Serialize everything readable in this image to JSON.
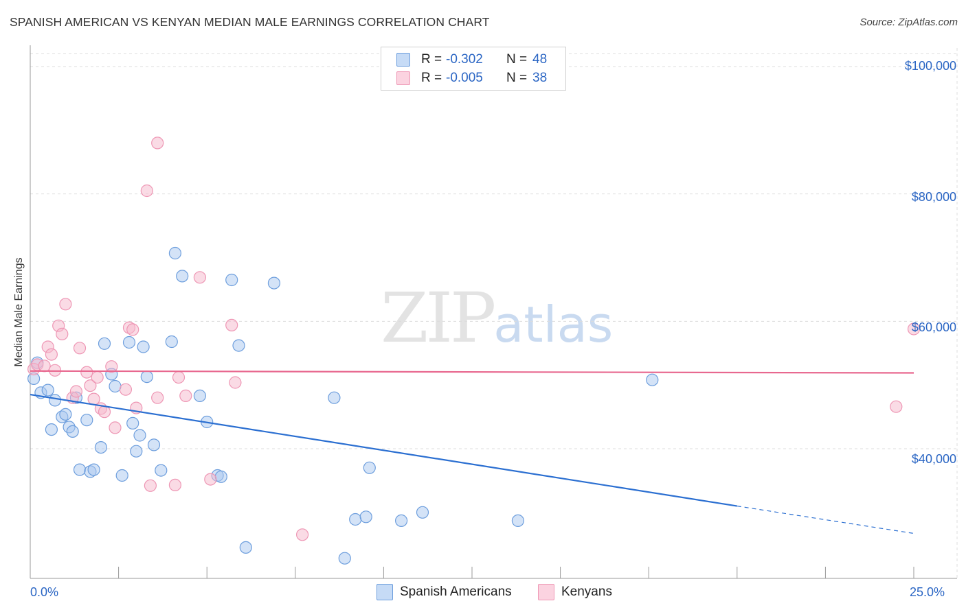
{
  "title": "SPANISH AMERICAN VS KENYAN MEDIAN MALE EARNINGS CORRELATION CHART",
  "source": "Source: ZipAtlas.com",
  "watermark": {
    "part1": "ZIP",
    "part2": "atlas"
  },
  "legend": {
    "rows": [
      {
        "r_label": "R =",
        "r_value": "-0.302",
        "n_label": "N =",
        "n_value": "48",
        "color": "#a9c8f0"
      },
      {
        "r_label": "R =",
        "r_value": "-0.005",
        "n_label": "N =",
        "n_value": "38",
        "color": "#f6b8cc"
      }
    ]
  },
  "bottom_legend": [
    "Spanish Americans",
    "Kenyans"
  ],
  "chart_data": {
    "type": "scatter",
    "title": "SPANISH AMERICAN VS KENYAN MEDIAN MALE EARNINGS CORRELATION CHART",
    "xlabel": "",
    "ylabel": "Median Male Earnings",
    "xlim": [
      0,
      25
    ],
    "ylim": [
      22000,
      103000
    ],
    "x_tick_labels": [
      "0.0%",
      "25.0%"
    ],
    "y_ticks": [
      40000,
      60000,
      80000,
      100000
    ],
    "y_tick_labels": [
      "$40,000",
      "$60,000",
      "$80,000",
      "$100,000"
    ],
    "grid": true,
    "series": [
      {
        "name": "Spanish Americans",
        "color": "#a9c8f0",
        "stroke": "#6d9edd",
        "line_color": "#2b6fd1",
        "trend": {
          "x0": 0,
          "y0": 48500,
          "x1": 20,
          "y1": 31000,
          "dashed_to_x": 25,
          "dashed_to_y": 26700
        },
        "points": [
          [
            0.1,
            51000
          ],
          [
            0.2,
            53500
          ],
          [
            0.3,
            48800
          ],
          [
            0.5,
            49200
          ],
          [
            0.6,
            43000
          ],
          [
            0.7,
            47600
          ],
          [
            0.9,
            45000
          ],
          [
            1.0,
            45400
          ],
          [
            1.1,
            43400
          ],
          [
            1.2,
            42700
          ],
          [
            1.3,
            48000
          ],
          [
            1.4,
            36700
          ],
          [
            1.6,
            44500
          ],
          [
            1.7,
            36400
          ],
          [
            1.8,
            36700
          ],
          [
            2.0,
            40200
          ],
          [
            2.1,
            56500
          ],
          [
            2.3,
            51700
          ],
          [
            2.4,
            49800
          ],
          [
            2.6,
            35800
          ],
          [
            2.8,
            56700
          ],
          [
            2.9,
            44000
          ],
          [
            3.0,
            39600
          ],
          [
            3.1,
            42100
          ],
          [
            3.2,
            56000
          ],
          [
            3.3,
            51300
          ],
          [
            3.5,
            40600
          ],
          [
            3.7,
            36600
          ],
          [
            4.0,
            56800
          ],
          [
            4.1,
            70700
          ],
          [
            4.3,
            67100
          ],
          [
            4.8,
            48300
          ],
          [
            5.0,
            44200
          ],
          [
            5.3,
            35800
          ],
          [
            5.4,
            35600
          ],
          [
            5.7,
            66500
          ],
          [
            5.9,
            56200
          ],
          [
            6.1,
            24500
          ],
          [
            6.9,
            66000
          ],
          [
            8.6,
            48000
          ],
          [
            8.9,
            22800
          ],
          [
            9.2,
            28900
          ],
          [
            9.5,
            29300
          ],
          [
            9.6,
            37000
          ],
          [
            10.5,
            28700
          ],
          [
            11.1,
            30000
          ],
          [
            13.8,
            28700
          ],
          [
            17.6,
            50800
          ]
        ]
      },
      {
        "name": "Kenyans",
        "color": "#f6b8cc",
        "stroke": "#ee96b4",
        "line_color": "#e8688f",
        "trend": {
          "x0": 0,
          "y0": 52200,
          "x1": 25,
          "y1": 51900
        },
        "points": [
          [
            0.1,
            52500
          ],
          [
            0.2,
            53200
          ],
          [
            0.4,
            53000
          ],
          [
            0.5,
            56000
          ],
          [
            0.6,
            54800
          ],
          [
            0.7,
            52300
          ],
          [
            0.8,
            59300
          ],
          [
            0.9,
            58000
          ],
          [
            1.0,
            62700
          ],
          [
            1.2,
            48000
          ],
          [
            1.3,
            49000
          ],
          [
            1.4,
            55800
          ],
          [
            1.6,
            52000
          ],
          [
            1.7,
            49900
          ],
          [
            1.8,
            47800
          ],
          [
            1.9,
            51200
          ],
          [
            2.0,
            46300
          ],
          [
            2.1,
            45800
          ],
          [
            2.3,
            52900
          ],
          [
            2.4,
            43300
          ],
          [
            2.7,
            49300
          ],
          [
            2.8,
            59000
          ],
          [
            2.9,
            58700
          ],
          [
            3.0,
            46400
          ],
          [
            3.3,
            80500
          ],
          [
            3.4,
            34200
          ],
          [
            3.6,
            48000
          ],
          [
            3.6,
            88000
          ],
          [
            4.2,
            51200
          ],
          [
            4.1,
            34300
          ],
          [
            4.4,
            48300
          ],
          [
            4.8,
            66900
          ],
          [
            5.1,
            35200
          ],
          [
            5.7,
            59400
          ],
          [
            5.8,
            50400
          ],
          [
            7.7,
            26500
          ],
          [
            24.5,
            46600
          ],
          [
            25.0,
            58800
          ]
        ]
      }
    ]
  }
}
